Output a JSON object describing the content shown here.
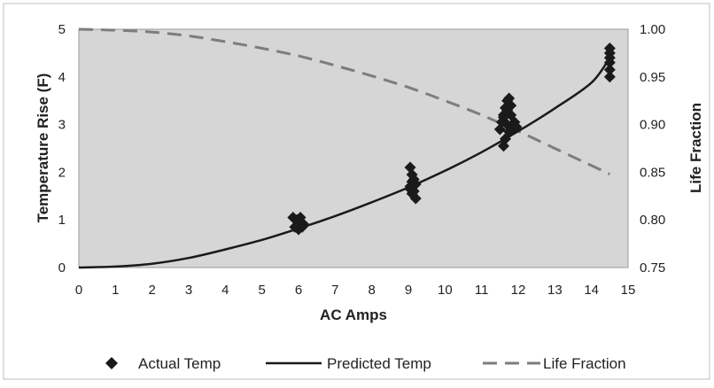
{
  "chart_data": {
    "type": "line",
    "title": "",
    "xlabel": "AC Amps",
    "ylabel_left": "Temperature Rise (F)",
    "ylabel_right": "Life Fraction",
    "xlim": [
      0,
      15
    ],
    "ylim_left": [
      0,
      5
    ],
    "ylim_right": [
      0.75,
      1.0
    ],
    "x_ticks": [
      "0",
      "1",
      "2",
      "3",
      "4",
      "5",
      "6",
      "7",
      "8",
      "9",
      "10",
      "11",
      "12",
      "13",
      "14",
      "15"
    ],
    "y_left_ticks": [
      "0",
      "1",
      "2",
      "3",
      "4",
      "5"
    ],
    "y_right_ticks": [
      "0.75",
      "0.80",
      "0.85",
      "0.90",
      "0.95",
      "1.00"
    ],
    "grid": false,
    "legend_position": "bottom",
    "colors": {
      "plot_background": "#d6d6d6",
      "actual_temp": "#1a1a1a",
      "predicted_temp": "#1a1a1a",
      "life_fraction": "#7d7d7d"
    },
    "series": [
      {
        "name": "Actual Temp",
        "kind": "scatter",
        "axis": "left",
        "x": [
          5.85,
          5.95,
          6.05,
          6.15,
          5.9,
          6.0,
          6.1,
          6.0,
          9.05,
          9.1,
          9.15,
          9.2,
          9.05,
          9.1,
          9.2,
          9.15,
          9.1,
          9.05,
          11.5,
          11.55,
          11.6,
          11.65,
          11.7,
          11.75,
          11.8,
          11.6,
          11.7,
          11.8,
          11.9,
          11.95,
          11.65,
          11.75,
          11.85,
          11.6,
          11.7,
          14.5,
          14.5,
          14.5,
          14.5,
          14.5,
          14.5
        ],
        "y": [
          1.05,
          1.0,
          1.05,
          0.9,
          0.85,
          0.8,
          0.85,
          0.95,
          2.1,
          1.95,
          1.85,
          1.75,
          1.65,
          1.55,
          1.45,
          1.6,
          1.8,
          1.7,
          2.9,
          3.05,
          3.2,
          3.35,
          3.5,
          3.55,
          3.4,
          3.15,
          3.0,
          3.2,
          3.05,
          2.95,
          2.7,
          2.85,
          2.9,
          2.55,
          3.3,
          4.6,
          4.5,
          4.4,
          4.3,
          4.15,
          4.0
        ]
      },
      {
        "name": "Predicted Temp",
        "kind": "line",
        "axis": "left",
        "x": [
          0,
          1,
          2,
          3,
          4,
          5,
          6,
          7,
          8,
          9,
          10,
          11,
          12,
          13,
          14,
          14.5
        ],
        "y": [
          0.0,
          0.02,
          0.08,
          0.2,
          0.38,
          0.58,
          0.82,
          1.08,
          1.37,
          1.68,
          2.03,
          2.42,
          2.86,
          3.34,
          3.88,
          4.4
        ]
      },
      {
        "name": "Life Fraction",
        "kind": "dashed-line",
        "axis": "right",
        "x": [
          0,
          1,
          2,
          3,
          4,
          5,
          6,
          7,
          8,
          9,
          10,
          11,
          12,
          13,
          14,
          14.5
        ],
        "y": [
          1.0,
          0.999,
          0.997,
          0.993,
          0.987,
          0.98,
          0.972,
          0.962,
          0.951,
          0.939,
          0.925,
          0.91,
          0.893,
          0.875,
          0.857,
          0.848
        ]
      }
    ]
  }
}
